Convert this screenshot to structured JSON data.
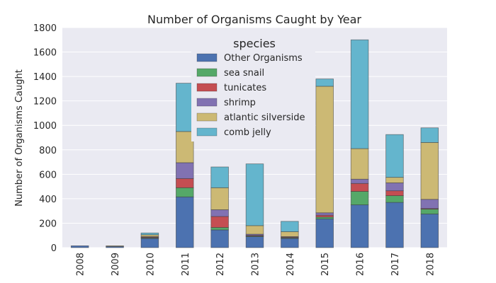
{
  "chart_data": {
    "type": "bar",
    "stacked": true,
    "title": "Number of Organisms Caught by Year",
    "ylabel": "Number of Organisms Caught",
    "xlabel": "",
    "ylim": [
      0,
      1800
    ],
    "yticks": [
      0,
      200,
      400,
      600,
      800,
      1000,
      1200,
      1400,
      1600,
      1800
    ],
    "grid": true,
    "categories": [
      "2008",
      "2009",
      "2010",
      "2011",
      "2012",
      "2013",
      "2014",
      "2015",
      "2016",
      "2017",
      "2018"
    ],
    "legend": {
      "title": "species",
      "placement": "top-center"
    },
    "series": [
      {
        "name": "Other Organisms",
        "color": "#4c72b0",
        "values": [
          15,
          10,
          75,
          415,
          145,
          90,
          75,
          235,
          350,
          370,
          275
        ]
      },
      {
        "name": "sea snail",
        "color": "#55a868",
        "values": [
          0,
          0,
          5,
          75,
          20,
          5,
          5,
          15,
          110,
          55,
          40
        ]
      },
      {
        "name": "tunicates",
        "color": "#c44e52",
        "values": [
          0,
          0,
          5,
          75,
          90,
          5,
          5,
          15,
          65,
          40,
          5
        ]
      },
      {
        "name": "shrimp",
        "color": "#8172b2",
        "values": [
          0,
          0,
          5,
          130,
          55,
          10,
          5,
          20,
          35,
          65,
          75
        ]
      },
      {
        "name": "atlantic silverside",
        "color": "#ccb974",
        "values": [
          0,
          5,
          15,
          255,
          180,
          70,
          40,
          1035,
          250,
          45,
          465
        ]
      },
      {
        "name": "comb jelly",
        "color": "#64b5cd",
        "values": [
          0,
          0,
          15,
          395,
          170,
          505,
          85,
          60,
          890,
          350,
          120
        ]
      }
    ]
  }
}
